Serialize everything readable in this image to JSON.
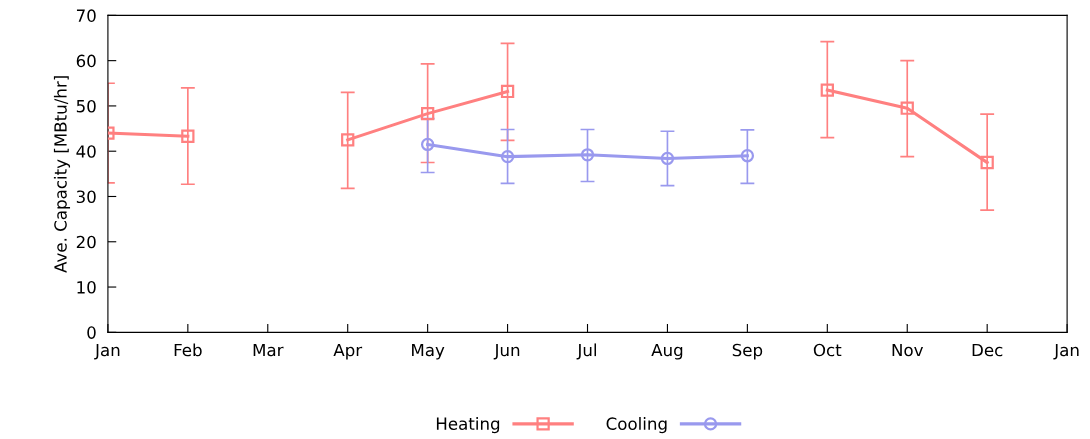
{
  "chart_data": {
    "type": "line",
    "ylabel": "Ave. Capacity [MBtu/hr]",
    "categories": [
      "Jan",
      "Feb",
      "Mar",
      "Apr",
      "May",
      "Jun",
      "Jul",
      "Aug",
      "Sep",
      "Oct",
      "Nov",
      "Dec",
      "Jan"
    ],
    "series": [
      {
        "name": "Heating",
        "color": "#ff8080",
        "marker": "square",
        "values": [
          44,
          43.3,
          null,
          42.5,
          48.3,
          53.2,
          null,
          null,
          null,
          53.5,
          49.5,
          37.5,
          null
        ],
        "errors": [
          [
            33,
            55
          ],
          [
            32.7,
            54
          ],
          null,
          [
            31.8,
            53
          ],
          [
            37.5,
            59.3
          ],
          [
            42.4,
            63.8
          ],
          null,
          null,
          null,
          [
            43,
            64.2
          ],
          [
            38.8,
            60
          ],
          [
            27,
            48.2
          ],
          null
        ]
      },
      {
        "name": "Cooling",
        "color": "#9999ee",
        "marker": "circle",
        "values": [
          null,
          null,
          null,
          null,
          41.5,
          38.8,
          39.2,
          38.4,
          39,
          null,
          null,
          null,
          null
        ],
        "errors": [
          null,
          null,
          null,
          null,
          [
            35.3,
            47.2
          ],
          [
            32.9,
            44.8
          ],
          [
            33.3,
            44.8
          ],
          [
            32.4,
            44.4
          ],
          [
            32.9,
            44.7
          ],
          null,
          null,
          null,
          null
        ]
      }
    ],
    "ylim": [
      0,
      70
    ],
    "yticks": [
      0,
      10,
      20,
      30,
      40,
      50,
      60,
      70
    ],
    "grid": false,
    "legend": "bottom",
    "line_style": "solid"
  }
}
